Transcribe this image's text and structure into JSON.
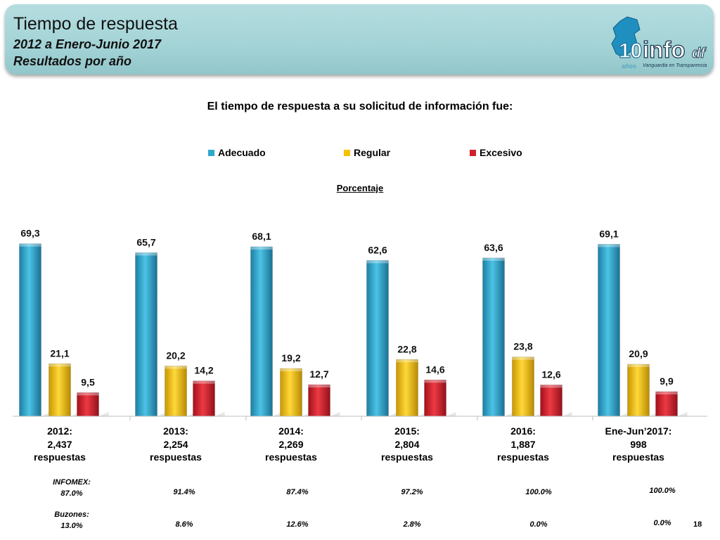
{
  "header": {
    "title": "Tiempo de respuesta",
    "subtitle1": "2012 a Enero-Junio 2017",
    "subtitle2": "Resultados por año",
    "logo_text": "info",
    "logo_suffix": "df",
    "logo_number": "10",
    "logo_years": "años",
    "logo_tagline": "Vanguardia en Transparencia"
  },
  "chart_data": {
    "type": "bar",
    "title": "El tiempo de respuesta a su solicitud de información fue:",
    "ylabel": "Porcentaje",
    "ylim": [
      0,
      80
    ],
    "legend_position": "top",
    "categories": [
      "2012:\n2,437\nrespuestas",
      "2013:\n2,254\nrespuestas",
      "2014:\n2,269\nrespuestas",
      "2015:\n2,804\nrespuestas",
      "2016:\n1,887\nrespuestas",
      "Ene-Jun’2017:\n998\nrespuestas"
    ],
    "series": [
      {
        "name": "Adecuado",
        "color": "#2fa8cc",
        "values": [
          69.3,
          65.7,
          68.1,
          62.6,
          63.6,
          69.1
        ],
        "labels": [
          "69,3",
          "65,7",
          "68,1",
          "62,6",
          "63,6",
          "69,1"
        ]
      },
      {
        "name": "Regular",
        "color": "#f6c000",
        "values": [
          21.1,
          20.2,
          19.2,
          22.8,
          23.8,
          20.9
        ],
        "labels": [
          "21,1",
          "20,2",
          "19,2",
          "22,8",
          "23,8",
          "20,9"
        ]
      },
      {
        "name": "Excesivo",
        "color": "#d21f2a",
        "values": [
          9.5,
          14.2,
          12.7,
          14.6,
          12.6,
          9.9
        ],
        "labels": [
          "9,5",
          "14,2",
          "12,7",
          "14,6",
          "12,6",
          "9,9"
        ]
      }
    ]
  },
  "notes": {
    "infomex_label": "INFOMEX:\n87.0%",
    "buzones_label": "Buzones:\n13.0%",
    "infomex_values": [
      "91.4%",
      "87.4%",
      "97.2%",
      "100.0%",
      "100.0%"
    ],
    "buzones_values": [
      "8.6%",
      "12.6%",
      "2.8%",
      "0.0%",
      "0.0%"
    ]
  },
  "page_number": "18"
}
